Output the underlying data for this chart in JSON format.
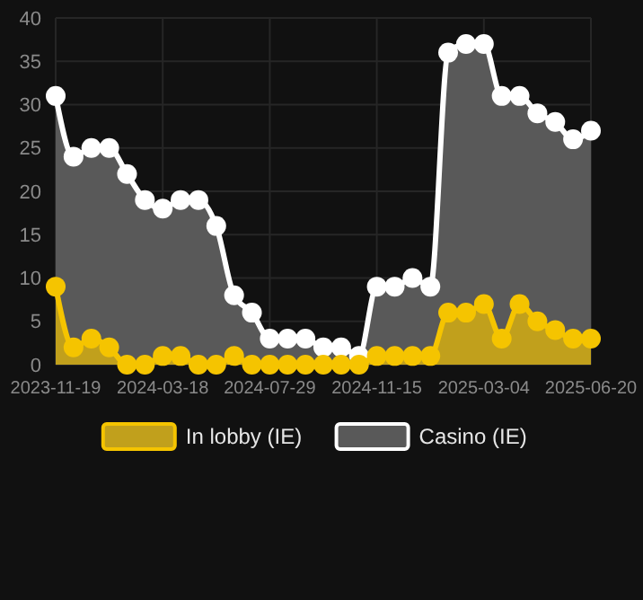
{
  "chart_data": {
    "type": "area",
    "categories": [
      "2023-11-19",
      null,
      null,
      null,
      null,
      null,
      "2024-03-18",
      null,
      null,
      null,
      null,
      null,
      "2024-07-29",
      null,
      null,
      null,
      null,
      null,
      "2024-11-15",
      null,
      null,
      null,
      null,
      null,
      "2025-03-04",
      null,
      null,
      null,
      null,
      null,
      "2025-06-20"
    ],
    "series": [
      {
        "name": "Casino (IE)",
        "color": "#ffffff",
        "values": [
          31,
          24,
          25,
          25,
          22,
          19,
          18,
          19,
          19,
          16,
          8,
          6,
          3,
          3,
          3,
          2,
          2,
          1,
          9,
          9,
          10,
          9,
          36,
          37,
          37,
          31,
          31,
          29,
          28,
          26,
          27
        ]
      },
      {
        "name": "In lobby (IE)",
        "color": "#f5c400",
        "values": [
          9,
          2,
          3,
          2,
          0,
          0,
          1,
          1,
          0,
          0,
          1,
          0,
          0,
          0,
          0,
          0,
          0,
          0,
          1,
          1,
          1,
          1,
          6,
          6,
          7,
          3,
          7,
          5,
          4,
          3,
          3
        ]
      }
    ],
    "ylim": [
      0,
      40
    ],
    "yticks": [
      0,
      5,
      10,
      15,
      20,
      25,
      30,
      35,
      40
    ],
    "grid": true,
    "legend": "bottom",
    "marker": "circle",
    "line_style": "solid"
  }
}
